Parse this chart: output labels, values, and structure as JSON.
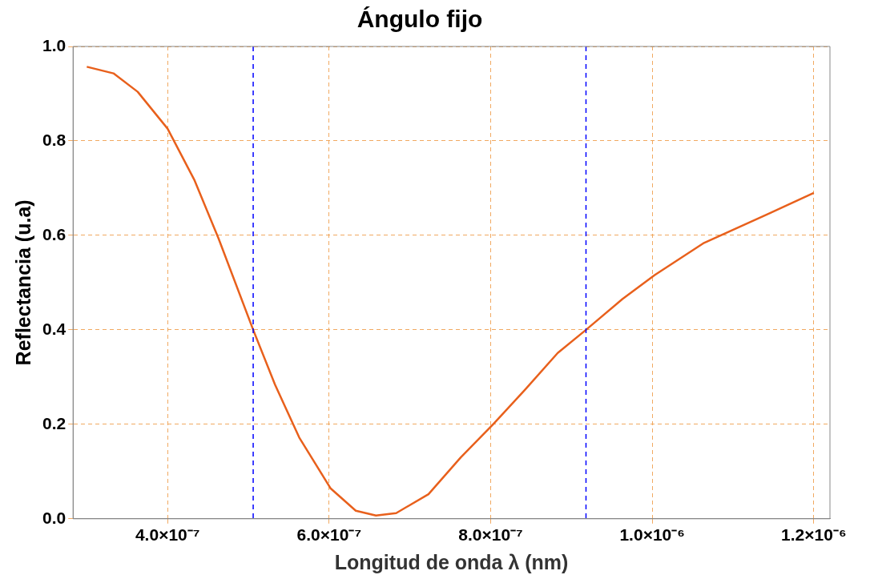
{
  "chart_data": {
    "type": "line",
    "title": "Ángulo fijo",
    "xlabel": "Longitud de onda λ (nm)",
    "ylabel": "Reflectancia (u.a)",
    "x": [
      3e-07,
      3.33e-07,
      3.63e-07,
      4e-07,
      4.33e-07,
      4.63e-07,
      5.06e-07,
      5.33e-07,
      5.63e-07,
      6.02e-07,
      6.33e-07,
      6.58e-07,
      6.83e-07,
      7.23e-07,
      7.63e-07,
      8.03e-07,
      8.43e-07,
      8.83e-07,
      9.18e-07,
      9.63e-07,
      1.003e-06,
      1.063e-06,
      1.103e-06,
      1.143e-06,
      1.2e-06
    ],
    "series": [
      {
        "color": "#e8601c",
        "values": [
          0.957,
          0.943,
          0.904,
          0.826,
          0.718,
          0.594,
          0.4,
          0.284,
          0.172,
          0.064,
          0.017,
          0.007,
          0.012,
          0.052,
          0.13,
          0.2,
          0.274,
          0.351,
          0.4,
          0.465,
          0.516,
          0.583,
          0.614,
          0.645,
          0.69
        ]
      }
    ],
    "xlim": [
      2.83e-07,
      1.22e-06
    ],
    "xticks": [
      {
        "value": 4e-07,
        "label": "4.0×10⁻⁷"
      },
      {
        "value": 6e-07,
        "label": "6.0×10⁻⁷"
      },
      {
        "value": 8e-07,
        "label": "8.0×10⁻⁷"
      },
      {
        "value": 1e-06,
        "label": "1.0×10⁻⁶"
      },
      {
        "value": 1.2e-06,
        "label": "1.2×10⁻⁶"
      }
    ],
    "ylim": [
      0,
      1
    ],
    "yticks": [
      {
        "value": 0,
        "label": "0.0"
      },
      {
        "value": 0.2,
        "label": "0.2"
      },
      {
        "value": 0.4,
        "label": "0.4"
      },
      {
        "value": 0.6,
        "label": "0.6"
      },
      {
        "value": 0.8,
        "label": "0.8"
      },
      {
        "value": 1,
        "label": "1.0"
      }
    ],
    "grid": true,
    "ref_lines": [
      {
        "axis": "x",
        "value": 5.06e-07,
        "color": "#0000ff",
        "line_style": "dashed"
      },
      {
        "axis": "x",
        "value": 9.18e-07,
        "color": "#0000ff",
        "line_style": "dashed"
      }
    ]
  }
}
